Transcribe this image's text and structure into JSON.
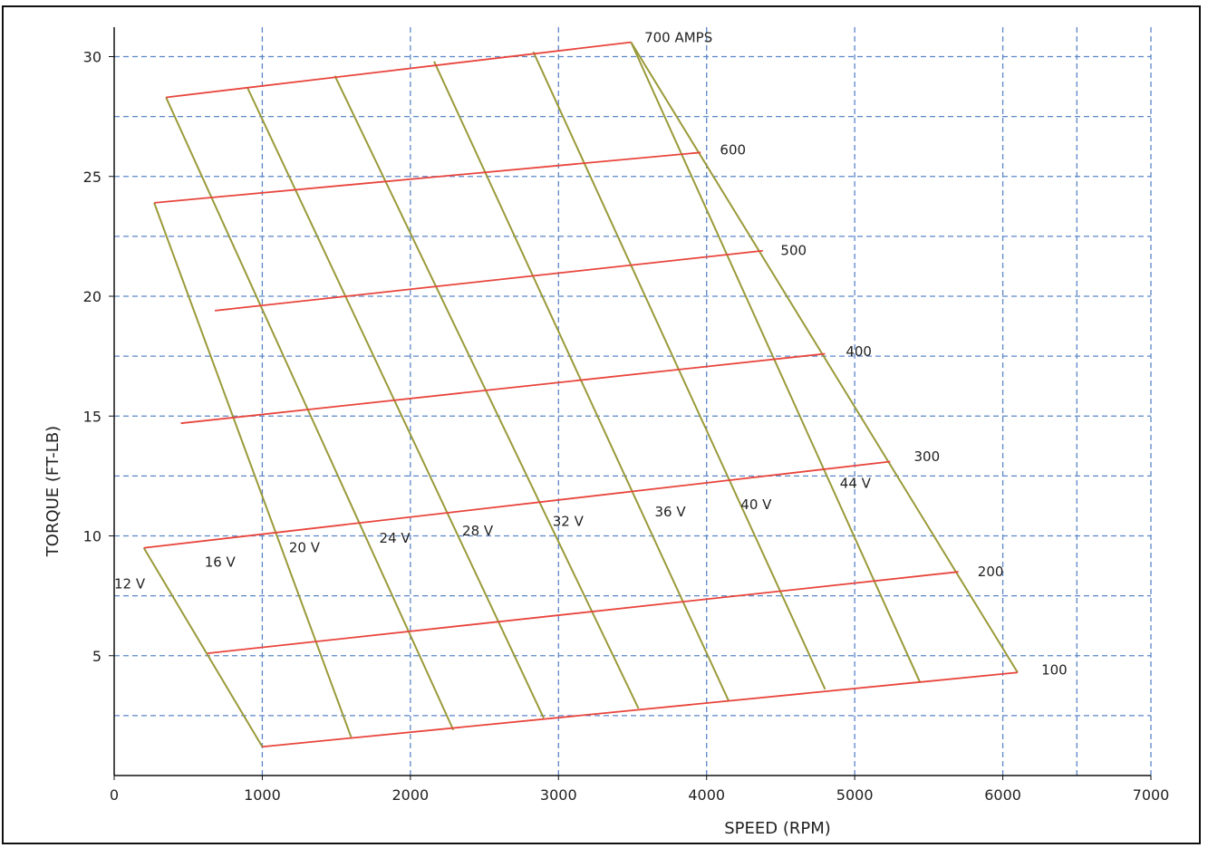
{
  "colors": {
    "amp_lines": "#e8453c",
    "volt_lines": "#9a9a3a",
    "grid": "#5b86c8",
    "axis": "#111111"
  },
  "chart_data": {
    "type": "line",
    "xlabel": "SPEED (RPM)",
    "ylabel": "TORQUE (FT-LB)",
    "xlim": [
      0,
      7000
    ],
    "ylim": [
      0,
      31
    ],
    "xticks": [
      0,
      1000,
      2000,
      3000,
      4000,
      5000,
      6000,
      7000
    ],
    "yticks": [
      5,
      10,
      15,
      20,
      25,
      30
    ],
    "xtick_labels": [
      "0",
      "1000",
      "2000",
      "3000",
      "4000",
      "5000",
      "6000",
      "7000"
    ],
    "ytick_labels": [
      "5",
      "10",
      "15",
      "20",
      "25",
      "30"
    ],
    "grid": true,
    "grid_style": "dashed",
    "y_minor_grid": [
      2.5,
      7.5,
      12.5,
      17.5,
      22.5,
      27.5
    ],
    "x_minor_grid": [
      6500
    ],
    "current_series": [
      {
        "name": "100",
        "x": [
          1000,
          6100
        ],
        "y": [
          1.2,
          4.3
        ]
      },
      {
        "name": "200",
        "x": [
          630,
          5700
        ],
        "y": [
          5.1,
          8.5
        ]
      },
      {
        "name": "300",
        "x": [
          200,
          5240
        ],
        "y": [
          9.5,
          13.1
        ]
      },
      {
        "name": "400",
        "x": [
          450,
          4800
        ],
        "y": [
          14.7,
          17.6
        ]
      },
      {
        "name": "500",
        "x": [
          680,
          4380
        ],
        "y": [
          19.4,
          21.9
        ]
      },
      {
        "name": "600",
        "x": [
          270,
          3960
        ],
        "y": [
          23.9,
          26.0
        ]
      },
      {
        "name": "700 AMPS",
        "x": [
          350,
          3490
        ],
        "y": [
          28.3,
          30.6
        ]
      }
    ],
    "voltage_series": [
      {
        "name": "12 V",
        "x": [
          200,
          1000
        ],
        "y": [
          9.5,
          1.2
        ]
      },
      {
        "name": "16 V",
        "x": [
          270,
          1600
        ],
        "y": [
          23.9,
          1.6
        ]
      },
      {
        "name": "20 V",
        "x": [
          350,
          2290
        ],
        "y": [
          28.3,
          1.9
        ]
      },
      {
        "name": "24 V",
        "x": [
          900,
          2900
        ],
        "y": [
          28.7,
          2.4
        ]
      },
      {
        "name": "28 V",
        "x": [
          1490,
          3540
        ],
        "y": [
          29.2,
          2.8
        ]
      },
      {
        "name": "32 V",
        "x": [
          2160,
          4150
        ],
        "y": [
          29.8,
          3.1
        ]
      },
      {
        "name": "36 V",
        "x": [
          2830,
          4800
        ],
        "y": [
          30.2,
          3.6
        ]
      },
      {
        "name": "40 V",
        "x": [
          3490,
          5440
        ],
        "y": [
          30.6,
          3.9
        ]
      },
      {
        "name": "44 V",
        "x": [
          3490,
          6100
        ],
        "y": [
          30.6,
          4.3
        ]
      }
    ],
    "current_labels": [
      {
        "text": "700 AMPS",
        "x": 3580,
        "y": 30.8
      },
      {
        "text": "600",
        "x": 4090,
        "y": 26.1
      },
      {
        "text": "500",
        "x": 4500,
        "y": 21.9
      },
      {
        "text": "400",
        "x": 4940,
        "y": 17.7
      },
      {
        "text": "300",
        "x": 5400,
        "y": 13.3
      },
      {
        "text": "200",
        "x": 5830,
        "y": 8.5
      },
      {
        "text": "100",
        "x": 6260,
        "y": 4.4
      }
    ],
    "voltage_labels": [
      {
        "text": "12 V",
        "x": 0,
        "y": 8.0
      },
      {
        "text": "16 V",
        "x": 610,
        "y": 8.9
      },
      {
        "text": "20 V",
        "x": 1180,
        "y": 9.5
      },
      {
        "text": "24 V",
        "x": 1790,
        "y": 9.9
      },
      {
        "text": "28 V",
        "x": 2350,
        "y": 10.2
      },
      {
        "text": "32 V",
        "x": 2960,
        "y": 10.6
      },
      {
        "text": "36 V",
        "x": 3650,
        "y": 11.0
      },
      {
        "text": "40 V",
        "x": 4230,
        "y": 11.3
      },
      {
        "text": "44 V",
        "x": 4900,
        "y": 12.2
      }
    ]
  }
}
